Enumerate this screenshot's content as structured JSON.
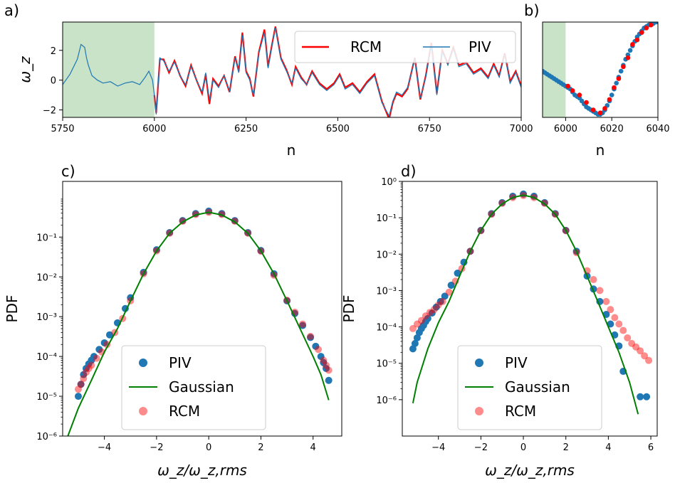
{
  "colors": {
    "piv": "#1f77b4",
    "rcm": "#ff0000",
    "gaussian": "#008000",
    "shade": "#c8e3c8"
  },
  "chart_data": [
    {
      "id": "a",
      "panel_label": "a)",
      "type": "line",
      "xlabel": "n",
      "ylabel": "ω_z",
      "xlim": [
        5750,
        7000
      ],
      "ylim": [
        -2.5,
        3.9
      ],
      "xticks": [
        "5750",
        "6000",
        "6250",
        "6500",
        "6750",
        "7000"
      ],
      "yticks": [
        "−2",
        "0",
        "2"
      ],
      "shaded_x": [
        5750,
        6000
      ],
      "legend": {
        "position": "top-right",
        "entries": [
          "RCM",
          "PIV"
        ]
      },
      "series": [
        {
          "name": "PIV",
          "x": [
            5750,
            5770,
            5790,
            5800,
            5810,
            5815,
            5820,
            5830,
            5845,
            5860,
            5880,
            5900,
            5920,
            5940,
            5960,
            5975,
            5985,
            5995,
            6000,
            6005,
            6015,
            6025,
            6040,
            6055,
            6070,
            6085,
            6100,
            6115,
            6130,
            6140,
            6150,
            6160,
            6175,
            6190,
            6205,
            6220,
            6230,
            6240,
            6250,
            6260,
            6270,
            6285,
            6300,
            6310,
            6320,
            6330,
            6345,
            6360,
            6375,
            6385,
            6400,
            6415,
            6430,
            6450,
            6470,
            6490,
            6505,
            6520,
            6540,
            6560,
            6580,
            6600,
            6620,
            6640,
            6650,
            6660,
            6675,
            6690,
            6710,
            6725,
            6740,
            6755,
            6770,
            6785,
            6800,
            6815,
            6830,
            6850,
            6870,
            6890,
            6910,
            6925,
            6940,
            6955,
            6970,
            6985,
            7000
          ],
          "y": [
            -0.3,
            0.4,
            1.4,
            2.4,
            2.2,
            1.5,
            1.0,
            0.3,
            0.0,
            -0.2,
            -0.1,
            -0.4,
            -0.2,
            -0.1,
            -0.3,
            0.2,
            0.6,
            0.0,
            -1.0,
            -2.3,
            1.5,
            1.3,
            0.6,
            1.2,
            0.3,
            -0.3,
            0.9,
            0.0,
            -0.8,
            0.5,
            -1.3,
            0.0,
            -0.5,
            0.3,
            -0.7,
            1.5,
            0.5,
            3.0,
            0.5,
            0.0,
            -1.0,
            1.8,
            3.2,
            0.8,
            2.2,
            3.5,
            1.4,
            0.6,
            -0.2,
            0.8,
            0.1,
            -0.3,
            0.5,
            -0.3,
            -0.7,
            -0.3,
            0.3,
            -0.6,
            -0.3,
            -0.9,
            -0.2,
            0.3,
            -1.5,
            -2.4,
            -1.4,
            -0.8,
            -1.0,
            -0.5,
            1.4,
            -1.2,
            0.2,
            2.4,
            -1.0,
            1.9,
            1.0,
            2.1,
            0.9,
            1.1,
            0.4,
            0.7,
            0.1,
            1.0,
            0.2,
            1.7,
            -0.2,
            0.5,
            -0.5
          ]
        },
        {
          "name": "RCM",
          "x": [
            6000,
            6005,
            6015,
            6025,
            6040,
            6055,
            6070,
            6085,
            6100,
            6115,
            6130,
            6140,
            6150,
            6160,
            6175,
            6190,
            6205,
            6220,
            6230,
            6240,
            6250,
            6260,
            6270,
            6285,
            6300,
            6310,
            6320,
            6330,
            6345,
            6360,
            6375,
            6385,
            6400,
            6415,
            6430,
            6450,
            6470,
            6490,
            6505,
            6520,
            6540,
            6560,
            6580,
            6600,
            6620,
            6640,
            6650,
            6660,
            6675,
            6690,
            6710,
            6725,
            6740,
            6755,
            6770,
            6785,
            6800,
            6815,
            6830,
            6850,
            6870,
            6890,
            6910,
            6925,
            6940,
            6955,
            6970,
            6985,
            7000
          ],
          "y": [
            -1.0,
            -2.2,
            1.4,
            1.4,
            0.5,
            1.3,
            0.3,
            -0.4,
            1.0,
            0.0,
            -0.9,
            0.4,
            -1.6,
            0.1,
            -0.4,
            0.3,
            -0.8,
            1.6,
            0.6,
            3.2,
            0.6,
            0.1,
            -1.1,
            1.9,
            3.4,
            0.9,
            2.3,
            3.6,
            1.5,
            0.7,
            -0.3,
            0.9,
            0.2,
            -0.3,
            0.6,
            -0.2,
            -0.6,
            -0.2,
            0.4,
            -0.5,
            -0.2,
            -0.8,
            -0.1,
            0.4,
            -1.4,
            -2.6,
            -1.5,
            -0.9,
            -1.1,
            -0.6,
            1.5,
            -1.3,
            0.3,
            2.5,
            -0.9,
            2.0,
            1.1,
            2.2,
            1.0,
            1.2,
            0.5,
            0.8,
            0.2,
            1.1,
            0.3,
            1.8,
            -0.1,
            0.6,
            -0.4
          ]
        }
      ]
    },
    {
      "id": "b",
      "panel_label": "b)",
      "type": "scatter",
      "xlabel": "n",
      "xlim": [
        5990,
        6040
      ],
      "ylim": [
        -2.5,
        3.9
      ],
      "xticks": [
        "6000",
        "6020",
        "6040"
      ],
      "shaded_x": [
        5990,
        6000
      ],
      "series": [
        {
          "name": "PIV",
          "x": [
            5990,
            5991,
            5992,
            5993,
            5994,
            5995,
            5996,
            5997,
            5998,
            5999,
            6000,
            6001,
            6002,
            6003,
            6004,
            6005,
            6006,
            6007,
            6008,
            6009,
            6010,
            6011,
            6012,
            6013,
            6014,
            6015,
            6016,
            6017,
            6018,
            6019,
            6020,
            6021,
            6022,
            6023,
            6024,
            6025,
            6026,
            6027,
            6028,
            6029,
            6030,
            6031,
            6032,
            6033,
            6034,
            6035,
            6036,
            6037,
            6038,
            6039,
            6040
          ],
          "y": [
            0.6,
            0.5,
            0.4,
            0.3,
            0.2,
            0.1,
            0.0,
            -0.1,
            -0.2,
            -0.3,
            -0.4,
            -0.5,
            -0.6,
            -0.8,
            -1.0,
            -1.1,
            -1.2,
            -1.4,
            -1.6,
            -1.8,
            -1.9,
            -2.0,
            -2.1,
            -2.2,
            -2.3,
            -2.3,
            -2.2,
            -2.0,
            -1.7,
            -1.4,
            -1.0,
            -0.6,
            -0.2,
            0.2,
            0.6,
            1.0,
            1.4,
            1.7,
            2.0,
            2.3,
            2.6,
            2.9,
            3.1,
            3.3,
            3.5,
            3.6,
            3.7,
            3.8,
            3.8,
            3.9,
            3.9
          ]
        },
        {
          "name": "RCM",
          "x": [
            6001,
            6003,
            6006,
            6009,
            6012,
            6015,
            6017,
            6019,
            6021,
            6023,
            6025,
            6027,
            6029,
            6031,
            6033,
            6035,
            6037
          ],
          "y": [
            -0.4,
            -0.7,
            -1.0,
            -1.5,
            -2.0,
            -2.2,
            -1.9,
            -1.3,
            -0.5,
            0.1,
            0.9,
            1.5,
            2.4,
            2.7,
            3.2,
            3.5,
            3.7
          ]
        }
      ]
    },
    {
      "id": "c",
      "panel_label": "c)",
      "type": "scatter",
      "xlabel": "ω_z/ω_z,rms",
      "ylabel": "PDF",
      "log_y": true,
      "xlim": [
        -5.6,
        5.1
      ],
      "ylim_log10": [
        -6,
        0.4
      ],
      "xticks": [
        "−4",
        "−2",
        "0",
        "2",
        "4"
      ],
      "yticks": [
        "10⁻⁶",
        "10⁻⁵",
        "10⁻⁴",
        "10⁻³",
        "10⁻²",
        "10⁻¹"
      ],
      "legend": {
        "position": "bottom-center",
        "entries": [
          "PIV",
          "Gaussian",
          "RCM"
        ]
      },
      "series": [
        {
          "name": "PIV",
          "x": [
            -5.0,
            -4.9,
            -4.8,
            -4.7,
            -4.6,
            -4.5,
            -4.4,
            -4.2,
            -4.0,
            -3.8,
            -3.5,
            -3.2,
            -3.0,
            -2.5,
            -2.0,
            -1.5,
            -1.0,
            -0.5,
            0.0,
            0.5,
            1.0,
            1.5,
            2.0,
            2.5,
            3.0,
            3.3,
            3.6,
            3.9,
            4.1,
            4.3,
            4.4,
            4.5,
            4.6
          ],
          "y": [
            1e-05,
            2e-05,
            3.5e-05,
            5e-05,
            6.5e-05,
            8e-05,
            0.0001,
            0.00015,
            0.00022,
            0.00035,
            0.0007,
            0.0016,
            0.003,
            0.013,
            0.048,
            0.13,
            0.26,
            0.39,
            0.45,
            0.39,
            0.26,
            0.13,
            0.046,
            0.012,
            0.0025,
            0.0012,
            0.0006,
            0.0003,
            0.00018,
            0.0001,
            7e-05,
            5e-05,
            2.5e-05
          ]
        },
        {
          "name": "RCM",
          "x": [
            -5.0,
            -4.9,
            -4.8,
            -4.7,
            -4.6,
            -4.5,
            -4.3,
            -4.1,
            -3.9,
            -3.6,
            -3.3,
            -3.0,
            -2.5,
            -2.0,
            -1.5,
            -1.0,
            -0.5,
            0.0,
            0.5,
            1.0,
            1.5,
            2.0,
            2.5,
            3.0,
            3.3,
            3.6,
            3.9,
            4.2,
            4.4,
            4.5,
            4.6
          ],
          "y": [
            1.5e-05,
            2e-05,
            2.8e-05,
            4e-05,
            5e-05,
            6e-05,
            9e-05,
            0.00013,
            0.0002,
            0.0004,
            0.0009,
            0.0025,
            0.012,
            0.045,
            0.125,
            0.25,
            0.37,
            0.42,
            0.37,
            0.25,
            0.125,
            0.044,
            0.011,
            0.0026,
            0.0013,
            0.00065,
            0.00032,
            0.00015,
            8e-05,
            6e-05,
            4.5e-05
          ]
        },
        {
          "name": "Gaussian",
          "x": [
            -5.4,
            -5.0,
            -4.5,
            -4.0,
            -3.5,
            -3.0,
            -2.5,
            -2.0,
            -1.5,
            -1.0,
            -0.5,
            0.0,
            0.5,
            1.0,
            1.5,
            2.0,
            2.5,
            3.0,
            3.5,
            4.0,
            4.3,
            4.6
          ],
          "y": [
            1e-06,
            5e-06,
            2.5e-05,
            0.00013,
            0.0005,
            0.0025,
            0.012,
            0.045,
            0.125,
            0.24,
            0.36,
            0.42,
            0.36,
            0.24,
            0.125,
            0.045,
            0.012,
            0.0025,
            0.0005,
            0.0001,
            3.5e-05,
            8e-06
          ]
        }
      ]
    },
    {
      "id": "d",
      "panel_label": "d)",
      "type": "scatter",
      "xlabel": "ω_z/ω_z,rms",
      "ylabel": "PDF",
      "log_y": true,
      "xlim": [
        -5.7,
        6.3
      ],
      "ylim_log10": [
        -7,
        0
      ],
      "xticks": [
        "−4",
        "−2",
        "0",
        "2",
        "4",
        "6"
      ],
      "yticks": [
        "10⁻⁶",
        "10⁻⁵",
        "10⁻⁴",
        "10⁻³",
        "10⁻²",
        "10⁻¹",
        "10⁰"
      ],
      "legend": {
        "position": "bottom-center",
        "entries": [
          "PIV",
          "Gaussian",
          "RCM"
        ]
      },
      "series": [
        {
          "name": "PIV",
          "x": [
            -5.2,
            -5.1,
            -5.0,
            -4.9,
            -4.8,
            -4.7,
            -4.6,
            -4.5,
            -4.3,
            -4.1,
            -3.9,
            -3.7,
            -3.4,
            -3.1,
            -2.8,
            -2.5,
            -2.0,
            -1.5,
            -1.0,
            -0.5,
            0.0,
            0.5,
            1.0,
            1.5,
            2.0,
            2.5,
            3.0,
            3.3,
            3.6,
            3.9,
            4.1,
            4.3,
            4.5,
            4.7,
            5.5,
            5.8
          ],
          "y": [
            2.5e-05,
            3.5e-05,
            5e-05,
            7e-05,
            9e-05,
            0.00011,
            0.00014,
            0.00017,
            0.00024,
            0.00035,
            0.0005,
            0.0007,
            0.0014,
            0.003,
            0.006,
            0.012,
            0.045,
            0.13,
            0.26,
            0.39,
            0.45,
            0.39,
            0.26,
            0.13,
            0.045,
            0.012,
            0.0025,
            0.0011,
            0.0005,
            0.00022,
            0.00012,
            6e-05,
            3e-05,
            6e-06,
            1.2e-06,
            1.2e-06
          ]
        },
        {
          "name": "RCM",
          "x": [
            -5.2,
            -5.0,
            -4.8,
            -4.6,
            -4.4,
            -4.2,
            -4.0,
            -3.8,
            -3.5,
            -3.2,
            -2.9,
            -2.5,
            -2.0,
            -1.5,
            -1.0,
            -0.5,
            0.0,
            0.5,
            1.0,
            1.5,
            2.0,
            2.5,
            3.0,
            3.3,
            3.6,
            3.9,
            4.1,
            4.3,
            4.5,
            4.7,
            4.9,
            5.1,
            5.3,
            5.5,
            5.7,
            5.9
          ],
          "y": [
            9e-05,
            0.00012,
            0.00015,
            0.0002,
            0.00025,
            0.0003,
            0.0004,
            0.0005,
            0.0009,
            0.0018,
            0.004,
            0.012,
            0.044,
            0.125,
            0.25,
            0.36,
            0.41,
            0.36,
            0.25,
            0.125,
            0.044,
            0.011,
            0.0035,
            0.002,
            0.001,
            0.0005,
            0.0003,
            0.00018,
            0.00012,
            8e-05,
            5e-05,
            3.5e-05,
            2.8e-05,
            2.2e-05,
            1.6e-05,
            1.2e-05
          ]
        },
        {
          "name": "Gaussian",
          "x": [
            -5.2,
            -5.0,
            -4.5,
            -4.0,
            -3.5,
            -3.0,
            -2.5,
            -2.0,
            -1.5,
            -1.0,
            -0.5,
            0.0,
            0.5,
            1.0,
            1.5,
            2.0,
            2.5,
            3.0,
            3.5,
            4.0,
            4.5,
            5.0,
            5.4
          ],
          "y": [
            8e-07,
            3e-06,
            2.5e-05,
            0.00013,
            0.0005,
            0.0025,
            0.012,
            0.045,
            0.125,
            0.24,
            0.36,
            0.42,
            0.36,
            0.24,
            0.125,
            0.045,
            0.012,
            0.0025,
            0.0005,
            0.0001,
            2e-05,
            3e-06,
            4e-07
          ]
        }
      ]
    }
  ]
}
